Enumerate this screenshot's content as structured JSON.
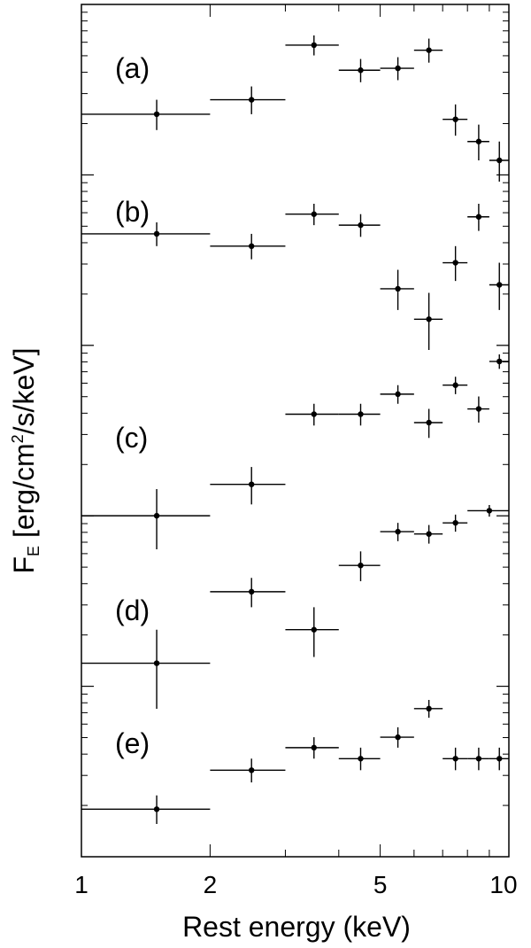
{
  "chart_data": {
    "type": "scatter",
    "xlabel": "Rest energy (keV)",
    "ylabel_main": "F",
    "ylabel_sub": "E",
    "ylabel_rest": " [erg/cm",
    "ylabel_sup": "2",
    "ylabel_end": "/s/keV]",
    "x_scale": "log",
    "xlim": [
      1,
      10
    ],
    "x_ticks": [
      {
        "value": 1,
        "label": "1"
      },
      {
        "value": 2,
        "label": "2"
      },
      {
        "value": 5,
        "label": "5"
      },
      {
        "value": 10,
        "label": "10"
      }
    ],
    "y_scale": "log",
    "y_ticklabels_shown": false,
    "panels": [
      {
        "label": "(a)",
        "points": [
          {
            "x": 1.5,
            "xerr": [
              1.0,
              2.0
            ],
            "y": 0.66,
            "yerr": [
              0.6,
              0.72
            ]
          },
          {
            "x": 2.5,
            "xerr": [
              2.0,
              3.0
            ],
            "y": 0.72,
            "yerr": [
              0.66,
              0.78
            ]
          },
          {
            "x": 3.5,
            "xerr": [
              3.0,
              4.0
            ],
            "y": 1.0,
            "yerr": [
              0.94,
              1.06
            ]
          },
          {
            "x": 4.5,
            "xerr": [
              4.0,
              5.0
            ],
            "y": 0.86,
            "yerr": [
              0.8,
              0.92
            ]
          },
          {
            "x": 5.5,
            "xerr": [
              5.0,
              6.0
            ],
            "y": 0.87,
            "yerr": [
              0.81,
              0.93
            ]
          },
          {
            "x": 6.5,
            "xerr": [
              6.0,
              7.0
            ],
            "y": 0.97,
            "yerr": [
              0.9,
              1.04
            ]
          },
          {
            "x": 7.5,
            "xerr": [
              7.0,
              8.0
            ],
            "y": 0.64,
            "yerr": [
              0.58,
              0.7
            ]
          },
          {
            "x": 8.5,
            "xerr": [
              8.0,
              9.0
            ],
            "y": 0.56,
            "yerr": [
              0.5,
              0.62
            ]
          },
          {
            "x": 9.5,
            "xerr": [
              9.0,
              10.0
            ],
            "y": 0.5,
            "yerr": [
              0.44,
              0.56
            ]
          }
        ]
      },
      {
        "label": "(b)",
        "points": [
          {
            "x": 1.5,
            "xerr": [
              1.0,
              2.0
            ],
            "y": 0.62,
            "yerr": [
              0.58,
              0.66
            ]
          },
          {
            "x": 2.5,
            "xerr": [
              2.0,
              3.0
            ],
            "y": 0.58,
            "yerr": [
              0.54,
              0.62
            ]
          },
          {
            "x": 3.5,
            "xerr": [
              3.0,
              4.0
            ],
            "y": 0.69,
            "yerr": [
              0.65,
              0.73
            ]
          },
          {
            "x": 4.5,
            "xerr": [
              4.0,
              5.0
            ],
            "y": 0.65,
            "yerr": [
              0.61,
              0.69
            ]
          },
          {
            "x": 5.5,
            "xerr": [
              5.0,
              6.0
            ],
            "y": 0.46,
            "yerr": [
              0.41,
              0.51
            ]
          },
          {
            "x": 6.5,
            "xerr": [
              6.0,
              7.0
            ],
            "y": 0.39,
            "yerr": [
              0.33,
              0.45
            ]
          },
          {
            "x": 7.5,
            "xerr": [
              7.0,
              8.0
            ],
            "y": 0.53,
            "yerr": [
              0.48,
              0.58
            ]
          },
          {
            "x": 8.5,
            "xerr": [
              8.0,
              9.0
            ],
            "y": 0.68,
            "yerr": [
              0.63,
              0.73
            ]
          },
          {
            "x": 9.5,
            "xerr": [
              9.0,
              10.0
            ],
            "y": 0.47,
            "yerr": [
              0.41,
              0.53
            ]
          }
        ]
      },
      {
        "label": "(c)",
        "points": [
          {
            "x": 1.5,
            "xerr": [
              1.0,
              2.0
            ],
            "y": 0.22,
            "yerr": [
              0.17,
              0.27
            ]
          },
          {
            "x": 2.5,
            "xerr": [
              2.0,
              3.0
            ],
            "y": 0.28,
            "yerr": [
              0.24,
              0.32
            ]
          },
          {
            "x": 3.5,
            "xerr": [
              3.0,
              4.0
            ],
            "y": 0.48,
            "yerr": [
              0.44,
              0.52
            ]
          },
          {
            "x": 4.5,
            "xerr": [
              4.0,
              5.0
            ],
            "y": 0.48,
            "yerr": [
              0.44,
              0.52
            ]
          },
          {
            "x": 5.5,
            "xerr": [
              5.0,
              6.0
            ],
            "y": 0.56,
            "yerr": [
              0.52,
              0.6
            ]
          },
          {
            "x": 6.5,
            "xerr": [
              6.0,
              7.0
            ],
            "y": 0.45,
            "yerr": [
              0.4,
              0.5
            ]
          },
          {
            "x": 7.5,
            "xerr": [
              7.0,
              8.0
            ],
            "y": 0.6,
            "yerr": [
              0.56,
              0.64
            ]
          },
          {
            "x": 8.5,
            "xerr": [
              8.0,
              9.0
            ],
            "y": 0.5,
            "yerr": [
              0.45,
              0.55
            ]
          },
          {
            "x": 9.5,
            "xerr": [
              9.0,
              10.0
            ],
            "y": 0.72,
            "yerr": [
              0.68,
              0.76
            ]
          }
        ]
      },
      {
        "label": "(d)",
        "points": [
          {
            "x": 1.5,
            "xerr": [
              1.0,
              2.0
            ],
            "y": 0.2,
            "yerr": [
              0.14,
              0.26
            ]
          },
          {
            "x": 2.5,
            "xerr": [
              2.0,
              3.0
            ],
            "y": 0.35,
            "yerr": [
              0.31,
              0.39
            ]
          },
          {
            "x": 3.5,
            "xerr": [
              3.0,
              4.0
            ],
            "y": 0.26,
            "yerr": [
              0.21,
              0.31
            ]
          },
          {
            "x": 4.5,
            "xerr": [
              4.0,
              5.0
            ],
            "y": 0.43,
            "yerr": [
              0.38,
              0.48
            ]
          },
          {
            "x": 5.5,
            "xerr": [
              5.0,
              6.0
            ],
            "y": 0.56,
            "yerr": [
              0.52,
              0.6
            ]
          },
          {
            "x": 6.5,
            "xerr": [
              6.0,
              7.0
            ],
            "y": 0.55,
            "yerr": [
              0.51,
              0.59
            ]
          },
          {
            "x": 7.5,
            "xerr": [
              7.0,
              8.0
            ],
            "y": 0.6,
            "yerr": [
              0.56,
              0.64
            ]
          },
          {
            "x": 9.0,
            "xerr": [
              8.0,
              10.0
            ],
            "y": 0.66,
            "yerr": [
              0.63,
              0.69
            ]
          }
        ]
      },
      {
        "label": "(e)",
        "points": [
          {
            "x": 1.5,
            "xerr": [
              1.0,
              2.0
            ],
            "y": 0.15,
            "yerr": [
              0.14,
              0.16
            ]
          },
          {
            "x": 2.5,
            "xerr": [
              2.0,
              3.0
            ],
            "y": 0.18,
            "yerr": [
              0.17,
              0.19
            ]
          },
          {
            "x": 3.5,
            "xerr": [
              3.0,
              4.0
            ],
            "y": 0.2,
            "yerr": [
              0.19,
              0.21
            ]
          },
          {
            "x": 4.5,
            "xerr": [
              4.0,
              5.0
            ],
            "y": 0.19,
            "yerr": [
              0.18,
              0.2
            ]
          },
          {
            "x": 5.5,
            "xerr": [
              5.0,
              6.0
            ],
            "y": 0.21,
            "yerr": [
              0.2,
              0.22
            ]
          },
          {
            "x": 6.5,
            "xerr": [
              6.0,
              7.0
            ],
            "y": 0.24,
            "yerr": [
              0.23,
              0.25
            ]
          },
          {
            "x": 7.5,
            "xerr": [
              7.0,
              8.0
            ],
            "y": 0.19,
            "yerr": [
              0.18,
              0.2
            ]
          },
          {
            "x": 8.5,
            "xerr": [
              8.0,
              9.0
            ],
            "y": 0.19,
            "yerr": [
              0.18,
              0.2
            ]
          },
          {
            "x": 9.5,
            "xerr": [
              9.0,
              10.0
            ],
            "y": 0.19,
            "yerr": [
              0.18,
              0.2
            ]
          }
        ]
      }
    ]
  }
}
